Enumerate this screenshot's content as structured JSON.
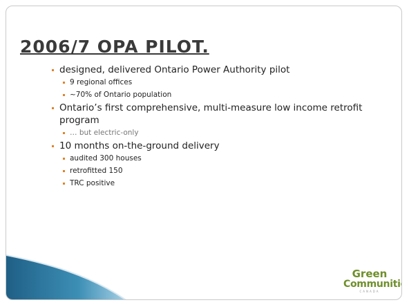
{
  "slide": {
    "title": "2006/7 OPA PILOT.",
    "bullets": [
      {
        "level": 1,
        "text": "designed, delivered Ontario Power Authority pilot"
      },
      {
        "level": 2,
        "text": "9 regional offices"
      },
      {
        "level": 2,
        "text": "~70% of Ontario population"
      },
      {
        "level": 1,
        "text": "Ontario’s first comprehensive, multi-measure low income retrofit program"
      },
      {
        "level": 2,
        "text": "… but electric-only",
        "color": "#777777"
      },
      {
        "level": 1,
        "text": "10 months on-the-ground delivery"
      },
      {
        "level": 2,
        "text": "audited 300 houses"
      },
      {
        "level": 2,
        "text": "retrofitted 150"
      },
      {
        "level": 2,
        "text": "TRC positive"
      }
    ],
    "logo": {
      "line1": "Green",
      "line2": "Communities",
      "line3": "CANADA"
    }
  }
}
